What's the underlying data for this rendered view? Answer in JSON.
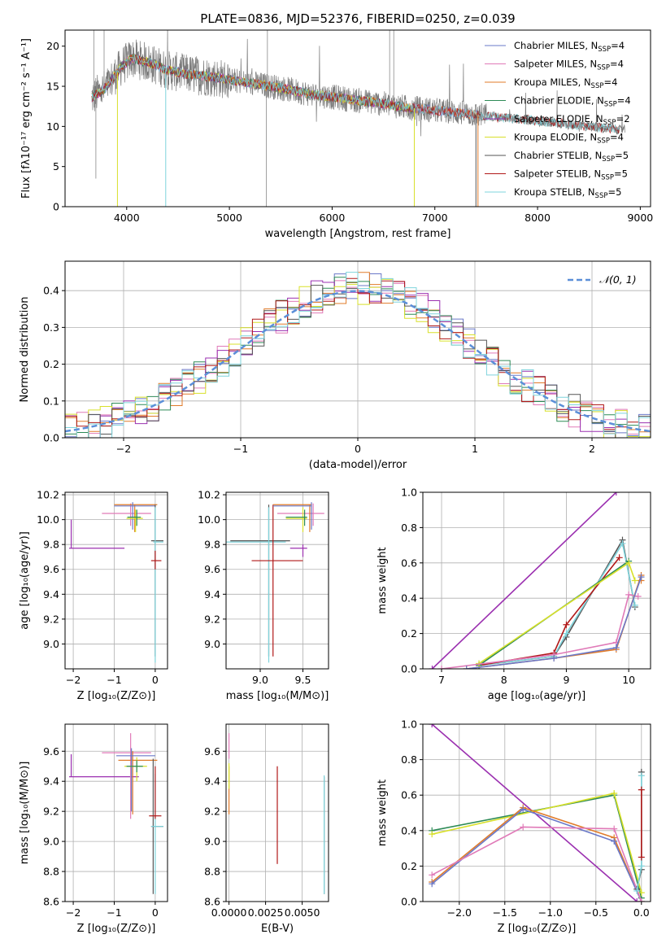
{
  "colors": {
    "Chabrier MILES": "#6a78c8",
    "Salpeter MILES": "#e07ab8",
    "Kroupa MILES": "#e07b2a",
    "Chabrier ELODIE": "#2e8b57",
    "Salpeter ELODIE": "#9b30b0",
    "Kroupa ELODIE": "#d8e02a",
    "Chabrier STELIB": "#555555",
    "Salpeter STELIB": "#b01818",
    "Kroupa STELIB": "#7fd4dc",
    "normal": "#5b8fd8"
  },
  "chart_data": [
    {
      "id": "spectrum",
      "type": "line",
      "title": "PLATE=0836, MJD=52376, FIBERID=0250, z=0.039",
      "xlabel": "wavelength [Angstrom, rest frame]",
      "ylabel": "Flux [fλ10⁻¹⁷ erg cm⁻² s⁻¹ A⁻¹]",
      "xlim": [
        3400,
        9100
      ],
      "ylim": [
        0,
        22
      ],
      "xticks": [
        4000,
        5000,
        6000,
        7000,
        8000,
        9000
      ],
      "yticks": [
        0,
        5,
        10,
        15,
        20
      ],
      "grid": false,
      "legend_position": "top-right",
      "legend": [
        {
          "label": "Chabrier MILES, N",
          "sub": "SSP",
          "tail": "=4"
        },
        {
          "label": "Salpeter MILES, N",
          "sub": "SSP",
          "tail": "=4"
        },
        {
          "label": "Kroupa MILES, N",
          "sub": "SSP",
          "tail": "=4"
        },
        {
          "label": "Chabrier ELODIE, N",
          "sub": "SSP",
          "tail": "=4"
        },
        {
          "label": "Salpeter ELODIE, N",
          "sub": "SSP",
          "tail": "=2"
        },
        {
          "label": "Kroupa ELODIE, N",
          "sub": "SSP",
          "tail": "=4"
        },
        {
          "label": "Chabrier STELIB, N",
          "sub": "SSP",
          "tail": "=5"
        },
        {
          "label": "Salpeter STELIB, N",
          "sub": "SSP",
          "tail": "=5"
        },
        {
          "label": "Kroupa STELIB, N",
          "sub": "SSP",
          "tail": "=5"
        }
      ],
      "continuum": {
        "x": [
          3650,
          3800,
          3950,
          4050,
          4200,
          4400,
          4600,
          4800,
          5000,
          5200,
          5500,
          5800,
          6100,
          6400,
          6700,
          7000,
          7300,
          7600,
          7900,
          8200,
          8500,
          8800
        ],
        "y": [
          13.5,
          14.8,
          17.5,
          18.5,
          18.0,
          17.0,
          16.5,
          16.2,
          15.8,
          15.4,
          14.8,
          14.0,
          13.5,
          13.0,
          12.4,
          12.0,
          11.6,
          11.2,
          10.8,
          10.4,
          10.0,
          9.6
        ]
      }
    },
    {
      "id": "residuals",
      "type": "histogram",
      "xlabel": "(data-model)/error",
      "ylabel": "Normed distribution",
      "xlim": [
        -2.5,
        2.5
      ],
      "ylim": [
        0,
        0.48
      ],
      "xticks": [
        -2,
        -1,
        0,
        1,
        2
      ],
      "yticks": [
        0.0,
        0.1,
        0.2,
        0.3,
        0.4
      ],
      "grid": true,
      "legend_position": "top-right",
      "legend": [
        {
          "label": "𝒩(0, 1)"
        }
      ],
      "bins": 50
    },
    {
      "id": "age-vs-Z",
      "type": "errorbar",
      "xlabel": "Z [log₁₀(Z/Z⊙)]",
      "ylabel": "age  [log₁₀(age/yr)]",
      "xlim": [
        -2.2,
        0.3
      ],
      "ylim": [
        8.8,
        10.22
      ],
      "xticks": [
        -2,
        -1,
        0
      ],
      "yticks": [
        9.0,
        9.2,
        9.4,
        9.6,
        9.8,
        10.0,
        10.2
      ],
      "grid": true
    },
    {
      "id": "age-vs-mass",
      "type": "errorbar",
      "xlabel": "mass [log₁₀(M/M⊙)]",
      "xlim": [
        8.6,
        9.8
      ],
      "ylim": [
        8.8,
        10.22
      ],
      "xticks": [
        9.0,
        9.5
      ],
      "yticks": [
        9.0,
        9.2,
        9.4,
        9.6,
        9.8,
        10.0,
        10.2
      ],
      "grid": true
    },
    {
      "id": "massweight-vs-age",
      "type": "line",
      "xlabel": "age  [log₁₀(age/yr)]",
      "ylabel": "mass weight",
      "xlim": [
        6.7,
        10.35
      ],
      "ylim": [
        0,
        1.0
      ],
      "xticks": [
        7,
        8,
        9,
        10
      ],
      "yticks": [
        0.0,
        0.2,
        0.4,
        0.6,
        0.8,
        1.0
      ],
      "grid": true,
      "series": [
        {
          "name": "Salpeter ELODIE",
          "x": [
            6.85,
            9.8
          ],
          "y": [
            0.0,
            1.0
          ]
        },
        {
          "name": "Chabrier STELIB",
          "x": [
            7.6,
            8.8,
            9.0,
            9.9,
            10.1
          ],
          "y": [
            0.02,
            0.07,
            0.18,
            0.73,
            0.35
          ]
        },
        {
          "name": "Kroupa STELIB",
          "x": [
            7.6,
            8.8,
            9.0,
            9.9,
            10.1
          ],
          "y": [
            0.02,
            0.07,
            0.2,
            0.71,
            0.36
          ]
        },
        {
          "name": "Salpeter STELIB",
          "x": [
            7.6,
            8.8,
            9.0,
            9.85
          ],
          "y": [
            0.02,
            0.09,
            0.25,
            0.63
          ]
        },
        {
          "name": "Chabrier ELODIE",
          "x": [
            7.6,
            10.0
          ],
          "y": [
            0.02,
            0.61
          ]
        },
        {
          "name": "Kroupa ELODIE",
          "x": [
            7.6,
            10.0,
            10.1
          ],
          "y": [
            0.03,
            0.6,
            0.5
          ]
        },
        {
          "name": "Salpeter MILES",
          "x": [
            7.0,
            8.8,
            9.8,
            10.0,
            10.15
          ],
          "y": [
            0.0,
            0.08,
            0.15,
            0.42,
            0.41
          ]
        },
        {
          "name": "Kroupa MILES",
          "x": [
            7.4,
            8.8,
            9.8,
            10.2,
            10.2
          ],
          "y": [
            0.0,
            0.06,
            0.11,
            0.53,
            0.5
          ]
        },
        {
          "name": "Chabrier MILES",
          "x": [
            7.4,
            8.8,
            9.8,
            10.2
          ],
          "y": [
            0.0,
            0.06,
            0.12,
            0.52
          ]
        }
      ]
    },
    {
      "id": "mass-vs-Z",
      "type": "errorbar",
      "xlabel": "Z [log₁₀(Z/Z⊙)]",
      "ylabel": "mass [log₁₀(M/M⊙)]",
      "xlim": [
        -2.2,
        0.3
      ],
      "ylim": [
        8.6,
        9.78
      ],
      "xticks": [
        -2,
        -1,
        0
      ],
      "yticks": [
        8.6,
        8.8,
        9.0,
        9.2,
        9.4,
        9.6
      ],
      "grid": true
    },
    {
      "id": "mass-vs-EBV",
      "type": "errorbar",
      "xlabel": "E(B-V)",
      "xlim": [
        -0.0002,
        0.0068
      ],
      "ylim": [
        8.6,
        9.78
      ],
      "xticks": [
        0.0,
        0.0025,
        0.005
      ],
      "xticklabels": [
        "0.0000",
        "0.0025",
        "0.0050"
      ],
      "yticks": [
        8.6,
        8.8,
        9.0,
        9.2,
        9.4,
        9.6
      ],
      "grid": true
    },
    {
      "id": "massweight-vs-Z",
      "type": "line",
      "xlabel": "Z [log₁₀(Z/Z⊙)]",
      "ylabel": "mass weight",
      "xlim": [
        -2.4,
        0.1
      ],
      "ylim": [
        0,
        1.0
      ],
      "xticks": [
        -2.0,
        -1.5,
        -1.0,
        -0.5,
        0.0
      ],
      "yticks": [
        0.0,
        0.2,
        0.4,
        0.6,
        0.8,
        1.0
      ],
      "grid": true,
      "series": [
        {
          "name": "Salpeter ELODIE",
          "x": [
            -2.3,
            -0.05
          ],
          "y": [
            1.0,
            0.0
          ]
        },
        {
          "name": "Chabrier ELODIE",
          "x": [
            -2.3,
            -0.3,
            0.0
          ],
          "y": [
            0.4,
            0.6,
            0.02
          ]
        },
        {
          "name": "Kroupa ELODIE",
          "x": [
            -2.3,
            -0.3,
            0.0
          ],
          "y": [
            0.38,
            0.61,
            0.05
          ]
        },
        {
          "name": "Kroupa MILES",
          "x": [
            -2.3,
            -1.3,
            -0.3,
            0.0
          ],
          "y": [
            0.11,
            0.53,
            0.36,
            0.0
          ]
        },
        {
          "name": "Chabrier MILES",
          "x": [
            -2.3,
            -1.3,
            -0.3,
            0.0
          ],
          "y": [
            0.1,
            0.52,
            0.34,
            0.0
          ]
        },
        {
          "name": "Salpeter MILES",
          "x": [
            -2.3,
            -1.3,
            -0.3,
            0.0
          ],
          "y": [
            0.15,
            0.42,
            0.41,
            0.0
          ]
        },
        {
          "name": "Chabrier STELIB",
          "x": [
            -0.05,
            0.0,
            0.0
          ],
          "y": [
            0.07,
            0.18,
            0.73
          ]
        },
        {
          "name": "Kroupa STELIB",
          "x": [
            -0.05,
            0.0,
            0.0
          ],
          "y": [
            0.06,
            0.2,
            0.71
          ]
        },
        {
          "name": "Salpeter STELIB",
          "x": [
            0.0,
            0.0
          ],
          "y": [
            0.25,
            0.63
          ]
        }
      ]
    }
  ]
}
